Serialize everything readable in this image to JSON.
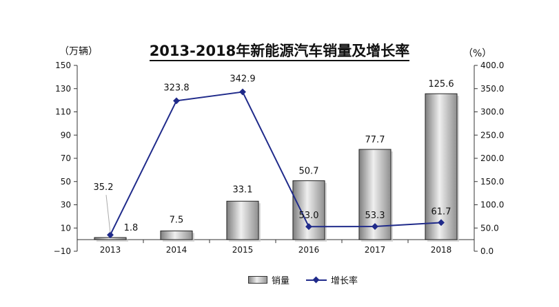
{
  "chart_data": {
    "type": "bar",
    "title": "2013-2018年新能源汽车销量及增长率",
    "categories": [
      "2013",
      "2014",
      "2015",
      "2016",
      "2017",
      "2018"
    ],
    "series": [
      {
        "name": "销量",
        "type": "bar",
        "axis": "left",
        "color": "#9a9a9a",
        "values": [
          1.8,
          7.5,
          33.1,
          50.7,
          77.7,
          125.6
        ],
        "labels": [
          "1.8",
          "7.5",
          "33.1",
          "50.7",
          "77.7",
          "125.6"
        ]
      },
      {
        "name": "增长率",
        "type": "line",
        "axis": "right",
        "color": "#1f2a8a",
        "values": [
          35.2,
          323.8,
          342.9,
          53.0,
          53.3,
          61.7
        ],
        "labels": [
          "35.2",
          "323.8",
          "342.9",
          "53.0",
          "53.3",
          "61.7"
        ]
      }
    ],
    "ylabel": "（万辆）",
    "y2label": "（%）",
    "ylim": [
      -10,
      150
    ],
    "y2lim": [
      0,
      400
    ],
    "yticks": [
      "150",
      "130",
      "110",
      "90",
      "70",
      "50",
      "30",
      "10",
      "−10"
    ],
    "y2ticks": [
      "400.0",
      "350.0",
      "300.0",
      "250.0",
      "200.0",
      "150.0",
      "100.0",
      "50.0",
      "0.0"
    ],
    "legend_position": "bottom",
    "grid": false
  }
}
